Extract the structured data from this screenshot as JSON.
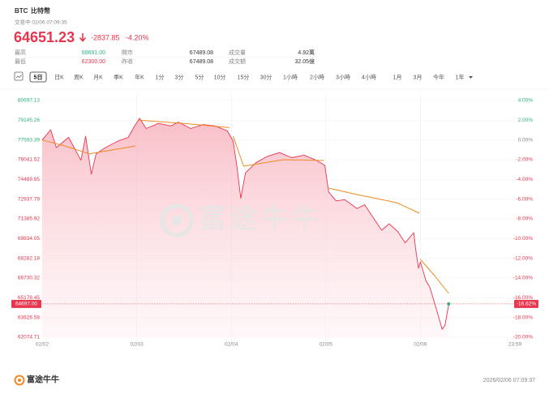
{
  "header": {
    "symbol": "BTC",
    "name": "比特幣",
    "status": "交易中 02/06 07:09:35",
    "price": "64651.23",
    "change": "-2837.85",
    "change_pct": "-4.20%"
  },
  "stats": [
    {
      "label": "最高",
      "value": "68691.00"
    },
    {
      "label": "開市",
      "value": "67489.08"
    },
    {
      "label": "成交量",
      "value": "4.92萬"
    },
    {
      "label": "最低",
      "value": "62300.00"
    },
    {
      "label": "昨收",
      "value": "67489.08"
    },
    {
      "label": "成交額",
      "value": "32.05億"
    }
  ],
  "toolbar": {
    "items": [
      "5日",
      "日K",
      "周K",
      "月K",
      "季K",
      "年K",
      "1分",
      "3分",
      "5分",
      "10分",
      "15分",
      "30分",
      "1小時",
      "2小時",
      "3小時",
      "4小時",
      "1月",
      "3月",
      "今年",
      "1年"
    ],
    "selected": 0
  },
  "chart_data": {
    "type": "line",
    "watermark": "富途牛牛",
    "xlim": [
      0,
      5
    ],
    "xticks": [
      {
        "value": 0,
        "label": "02/02"
      },
      {
        "value": 1,
        "label": "02/03"
      },
      {
        "value": 2,
        "label": "02/04"
      },
      {
        "value": 3,
        "label": "02/05"
      },
      {
        "value": 4,
        "label": "02/06"
      },
      {
        "value": 5,
        "label": "23:59"
      }
    ],
    "ylim": [
      62074.71,
      80697.13
    ],
    "yticks": [
      80697.13,
      79145.26,
      77593.39,
      76041.52,
      74489.65,
      72937.79,
      71385.92,
      69834.05,
      68282.18,
      66730.32,
      65178.45,
      63626.58,
      62074.71
    ],
    "y2lim": [
      -20,
      4
    ],
    "y2ticks": [
      {
        "value": 4,
        "label": "4.00%"
      },
      {
        "value": 2,
        "label": "2.00%"
      },
      {
        "value": 0,
        "label": "0.00%"
      },
      {
        "value": -2,
        "label": "-2.00%"
      },
      {
        "value": -4,
        "label": "-4.00%"
      },
      {
        "value": -6,
        "label": "-6.00%"
      },
      {
        "value": -8,
        "label": "-8.00%"
      },
      {
        "value": -10,
        "label": "-10.00%"
      },
      {
        "value": -12,
        "label": "-12.00%"
      },
      {
        "value": -14,
        "label": "-14.00%"
      },
      {
        "value": -16,
        "label": "-16.00%"
      },
      {
        "value": -18,
        "label": "-18.00%"
      },
      {
        "value": -20,
        "label": "-20.00%"
      }
    ],
    "grid": true,
    "current": {
      "value": 64697,
      "label": "64697.00",
      "pct": -16.62,
      "pct_label": "-16.62%"
    },
    "series": [
      {
        "color": "#e8364e",
        "fill": true,
        "x": [
          0,
          0.09,
          0.15,
          0.28,
          0.41,
          0.46,
          0.52,
          0.57,
          0.67,
          0.8,
          0.91,
          0.97,
          1.03,
          1.1,
          1.23,
          1.36,
          1.44,
          1.57,
          1.7,
          1.83,
          1.96,
          2.02,
          2.06,
          2.1,
          2.15,
          2.26,
          2.38,
          2.51,
          2.64,
          2.77,
          2.9,
          2.99,
          3.03,
          3.11,
          3.2,
          3.33,
          3.41,
          3.5,
          3.59,
          3.67,
          3.76,
          3.84,
          3.93,
          3.95,
          3.98,
          4.0,
          4.06,
          4.1,
          4.16,
          4.2,
          4.23,
          4.26,
          4.3
        ],
        "values": [
          77593,
          78400,
          77000,
          77800,
          76000,
          77900,
          74900,
          76500,
          77000,
          77500,
          77800,
          78600,
          79300,
          78500,
          78900,
          78700,
          79000,
          78500,
          78800,
          78700,
          78300,
          77500,
          75500,
          73000,
          75000,
          75800,
          76300,
          76600,
          76200,
          76400,
          76000,
          75600,
          73500,
          72800,
          72900,
          72200,
          72500,
          71500,
          70500,
          71000,
          70400,
          69500,
          70300,
          69000,
          67500,
          68000,
          66500,
          66000,
          64500,
          63500,
          62700,
          63000,
          64697
        ]
      },
      {
        "color": "#f08a24",
        "x": [
          0,
          0.25,
          0.5,
          0.99,
          null,
          1.02,
          1.5,
          1.98,
          null,
          2.02,
          2.13,
          2.55,
          2.9,
          2.98,
          null,
          3.03,
          3.33,
          3.75,
          3.99,
          null,
          4.0,
          4.15,
          4.3
        ],
        "values": [
          77593,
          77100,
          76500,
          77126,
          null,
          79145,
          78900,
          78570,
          null,
          77890,
          75530,
          76040,
          76000,
          75980,
          null,
          73810,
          73300,
          72660,
          71830,
          null,
          68197,
          66920,
          65518
        ]
      }
    ]
  },
  "footer": {
    "brand": "富途牛牛",
    "timestamp": "2026/02/06 07:09:37"
  }
}
